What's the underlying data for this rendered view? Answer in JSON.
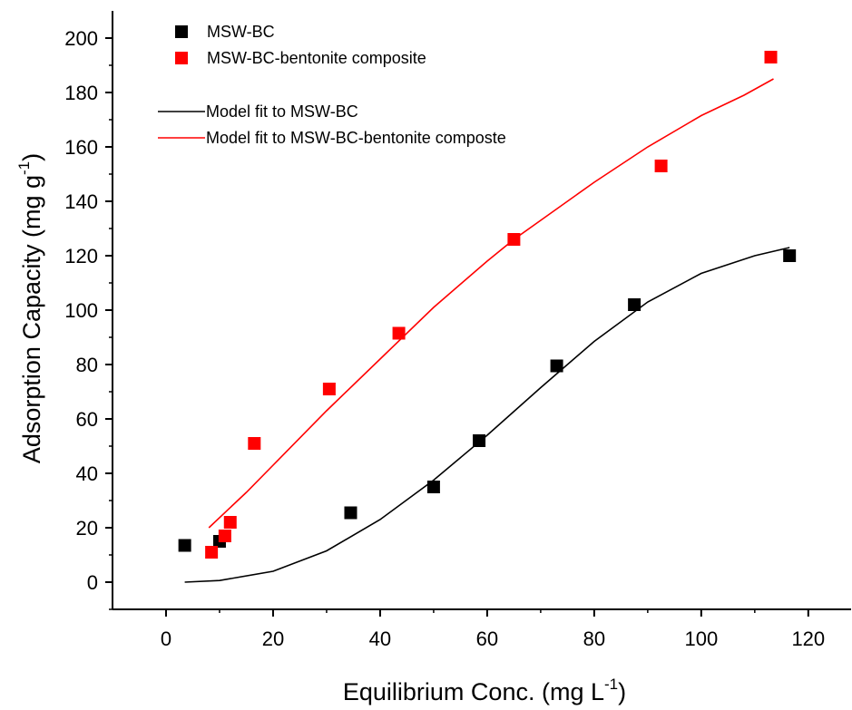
{
  "chart_data": {
    "type": "scatter",
    "xlabel": "Equilibrium Conc. (mg L",
    "xlabel_sup": "-1",
    "xlabel_end": ")",
    "ylabel": "Adsorption Capacity (mg g",
    "ylabel_sup": "-1",
    "ylabel_end": ")",
    "xlim": [
      -10,
      128
    ],
    "ylim": [
      -10,
      210
    ],
    "xticks": [
      0,
      20,
      40,
      60,
      80,
      100,
      120
    ],
    "yticks": [
      0,
      20,
      40,
      60,
      80,
      100,
      120,
      140,
      160,
      180,
      200
    ],
    "grid": false,
    "legend_position": "top-left",
    "series": [
      {
        "name": "MSW-BC",
        "kind": "scatter",
        "color": "#000000",
        "points": [
          [
            3.5,
            13.5
          ],
          [
            10,
            15
          ],
          [
            34.5,
            25.5
          ],
          [
            50,
            35
          ],
          [
            58.5,
            52
          ],
          [
            73,
            79.5
          ],
          [
            87.5,
            102
          ],
          [
            116.5,
            120
          ]
        ]
      },
      {
        "name": "MSW-BC-bentonite composite",
        "kind": "scatter",
        "color": "#ff0000",
        "points": [
          [
            8.5,
            11
          ],
          [
            11,
            17
          ],
          [
            12,
            22
          ],
          [
            16.5,
            51
          ],
          [
            30.5,
            71
          ],
          [
            43.5,
            91.5
          ],
          [
            65,
            126
          ],
          [
            92.5,
            153
          ],
          [
            113,
            193
          ]
        ]
      },
      {
        "name": "Model fit to MSW-BC",
        "kind": "line",
        "color": "#000000",
        "points": [
          [
            3.5,
            0
          ],
          [
            10,
            0.6
          ],
          [
            20,
            4
          ],
          [
            30,
            11.5
          ],
          [
            40,
            23
          ],
          [
            50,
            37.5
          ],
          [
            60,
            54
          ],
          [
            70,
            71.5
          ],
          [
            80,
            88.5
          ],
          [
            90,
            103
          ],
          [
            100,
            113.5
          ],
          [
            110,
            120
          ],
          [
            116.5,
            123
          ]
        ]
      },
      {
        "name": "Model fit to MSW-BC-bentonite composte",
        "kind": "line",
        "color": "#ff0000",
        "points": [
          [
            8,
            20
          ],
          [
            15,
            33
          ],
          [
            20,
            43
          ],
          [
            30,
            63
          ],
          [
            40,
            82
          ],
          [
            50,
            101
          ],
          [
            60,
            118
          ],
          [
            65,
            126
          ],
          [
            70,
            133
          ],
          [
            80,
            147
          ],
          [
            90,
            160
          ],
          [
            100,
            171.5
          ],
          [
            108,
            179
          ],
          [
            113.5,
            185
          ]
        ]
      }
    ]
  }
}
